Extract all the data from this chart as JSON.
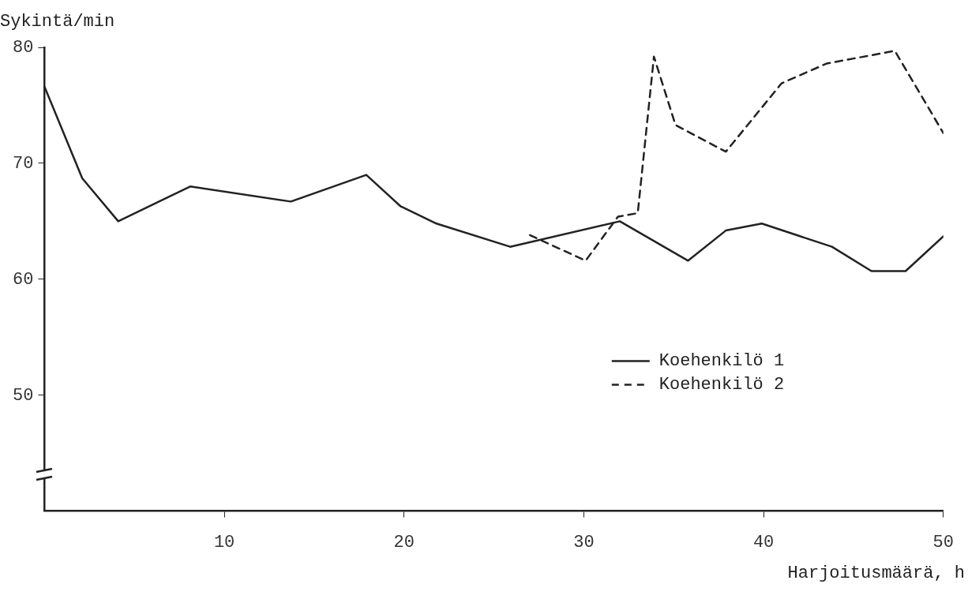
{
  "chart_data": {
    "type": "line",
    "xlabel": "Harjoitusmäärä, h",
    "ylabel": "Sykintä/min",
    "xlim": [
      0,
      50
    ],
    "xticks": [
      10,
      20,
      30,
      40,
      50
    ],
    "ylim": [
      40,
      80
    ],
    "yticks": [
      50,
      60,
      70,
      80
    ],
    "grid": false,
    "legend": "bottom right",
    "marker": "none",
    "series": [
      {
        "name": "Koehenkilö 1",
        "color": "#222222",
        "line_style": "solid",
        "x": [
          0,
          2.1,
          4.1,
          8.1,
          13.7,
          17.9,
          19.8,
          21.8,
          25.9,
          32,
          35.8,
          37.9,
          39.9,
          43.8,
          46,
          47.9,
          50
        ],
        "values": [
          76.6,
          68.7,
          65,
          68,
          66.7,
          69,
          66.3,
          64.8,
          62.8,
          65,
          61.6,
          64.2,
          64.8,
          62.8,
          60.7,
          60.7,
          63.7
        ]
      },
      {
        "name": "Koehenkilö 2",
        "color": "#222222",
        "line_style": "dashed",
        "x": [
          27,
          30.1,
          31.9,
          33,
          33.9,
          35.1,
          37.9,
          41,
          43.5,
          47.3,
          50
        ],
        "values": [
          63.8,
          61.6,
          65.4,
          65.7,
          79.2,
          73.3,
          71,
          76.9,
          78.6,
          79.7,
          72.6
        ]
      }
    ]
  }
}
